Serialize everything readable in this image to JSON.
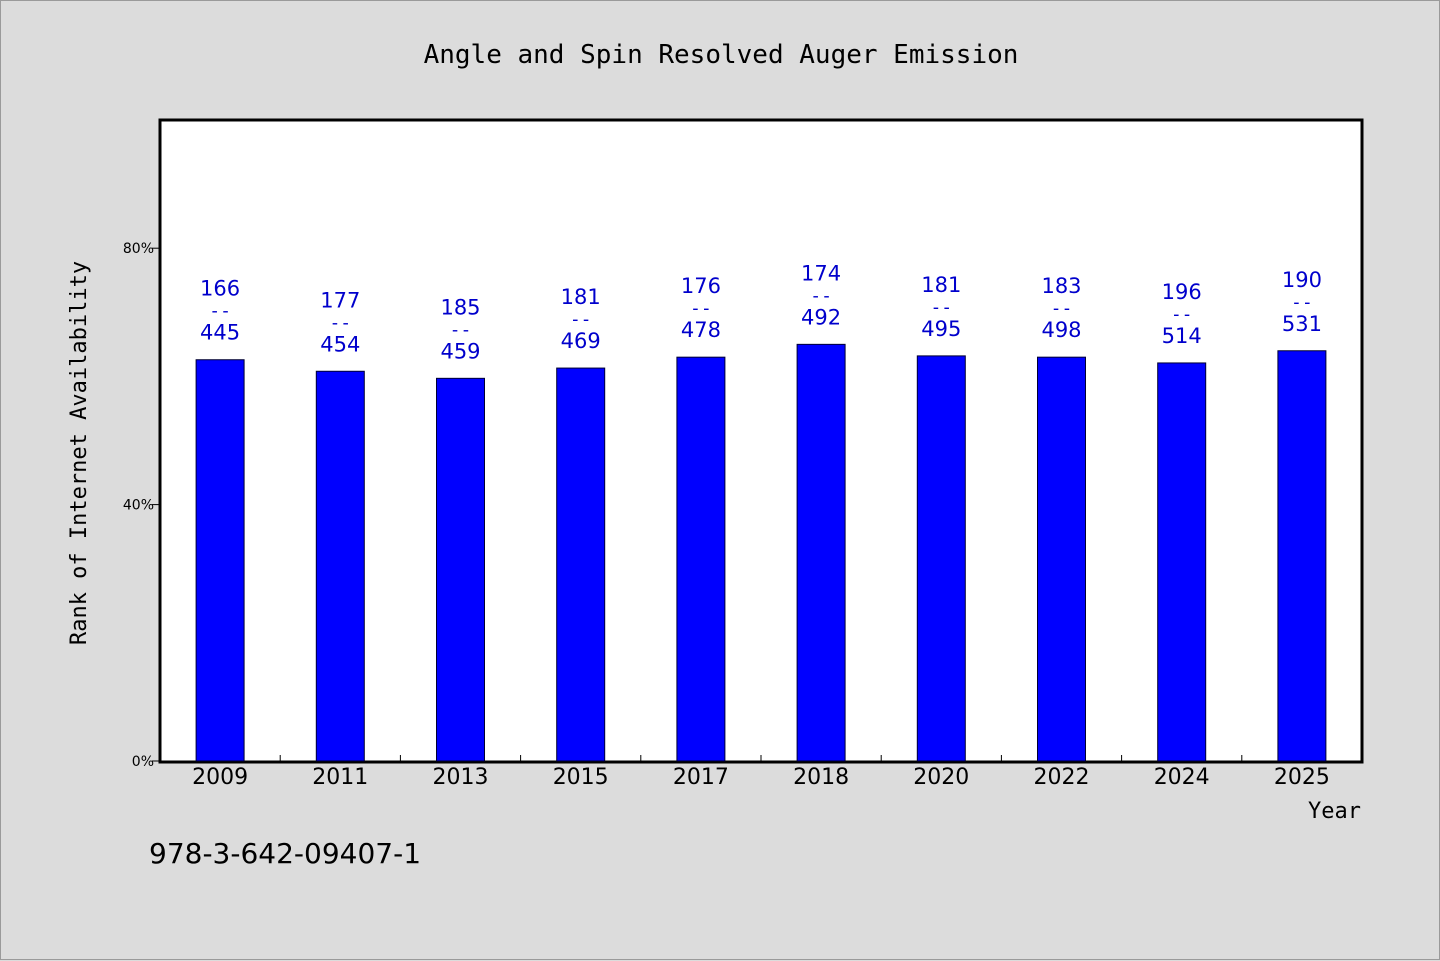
{
  "page": {
    "code_text": "978-3-642-09407-1"
  },
  "colors": {
    "background": "#dcdcdc",
    "plot_background": "#ffffff",
    "bar": "#0000ff",
    "label": "#0000cc",
    "axis": "#000000"
  },
  "chart_data": {
    "type": "bar",
    "title": "Angle and Spin Resolved Auger Emission",
    "xlabel": "Year",
    "ylabel": "Rank of Internet Availability",
    "ylim": [
      0,
      100
    ],
    "yticks": [
      {
        "value": 0,
        "label": "0%"
      },
      {
        "value": 40,
        "label": "40%"
      },
      {
        "value": 80,
        "label": "80%"
      }
    ],
    "y_format": "percent",
    "grid": false,
    "categories": [
      "2009",
      "2011",
      "2013",
      "2015",
      "2017",
      "2018",
      "2020",
      "2022",
      "2024",
      "2025"
    ],
    "series": [
      {
        "values": [
          62.6,
          60.8,
          59.7,
          61.3,
          63.0,
          65.0,
          63.2,
          63.0,
          62.1,
          64.0
        ],
        "labels_top": [
          "166",
          "177",
          "185",
          "181",
          "176",
          "174",
          "181",
          "183",
          "196",
          "190"
        ],
        "labels_sep": "--",
        "labels_bottom": [
          "445",
          "454",
          "459",
          "469",
          "478",
          "492",
          "495",
          "498",
          "514",
          "531"
        ]
      }
    ]
  }
}
